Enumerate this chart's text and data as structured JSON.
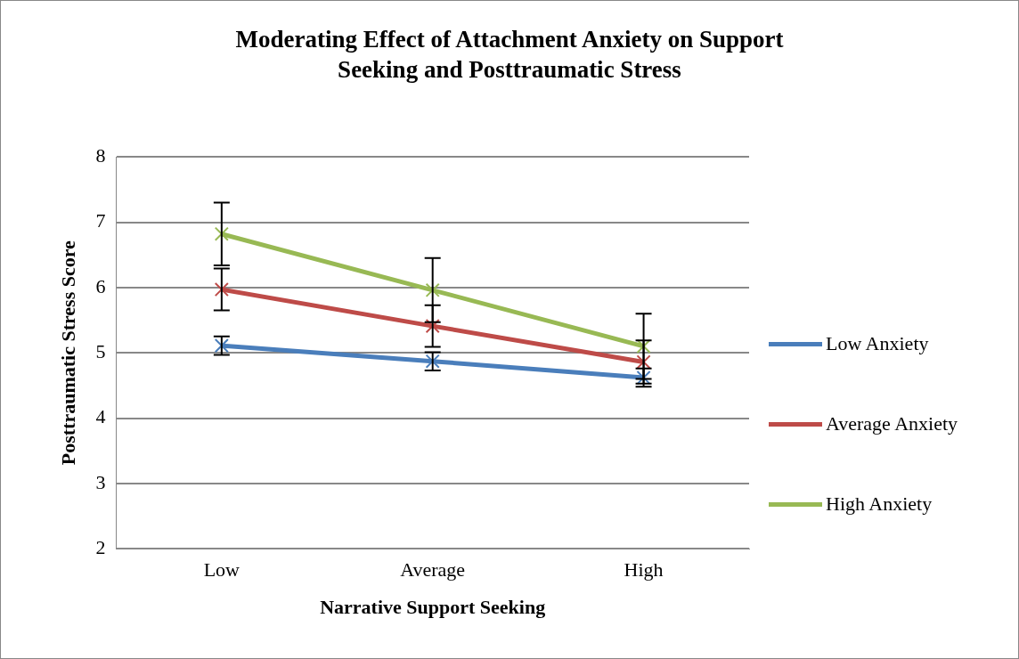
{
  "chart_data": {
    "type": "line",
    "title": "Moderating Effect of Attachment Anxiety on Support Seeking and Posttraumatic Stress",
    "xlabel": "Narrative Support Seeking",
    "ylabel": "Posttraumatic Stress Score",
    "categories": [
      "Low",
      "Average",
      "High"
    ],
    "series": [
      {
        "name": "Low Anxiety",
        "color": "#4a7ebb",
        "values": [
          5.11,
          4.87,
          4.62
        ],
        "errors": [
          0.14,
          0.14,
          0.14
        ]
      },
      {
        "name": "Average Anxiety",
        "color": "#be4b48",
        "values": [
          5.97,
          5.41,
          4.86
        ],
        "errors": [
          0.32,
          0.32,
          0.33
        ]
      },
      {
        "name": "High Anxiety",
        "color": "#98b954",
        "values": [
          6.82,
          5.96,
          5.1
        ],
        "errors": [
          0.48,
          0.49,
          0.5
        ]
      }
    ],
    "ylim": [
      2,
      8
    ],
    "yticks": [
      2,
      3,
      4,
      5,
      6,
      7,
      8
    ],
    "grid": "y",
    "legend": "right",
    "marker": "cross",
    "line_style": "solid"
  }
}
